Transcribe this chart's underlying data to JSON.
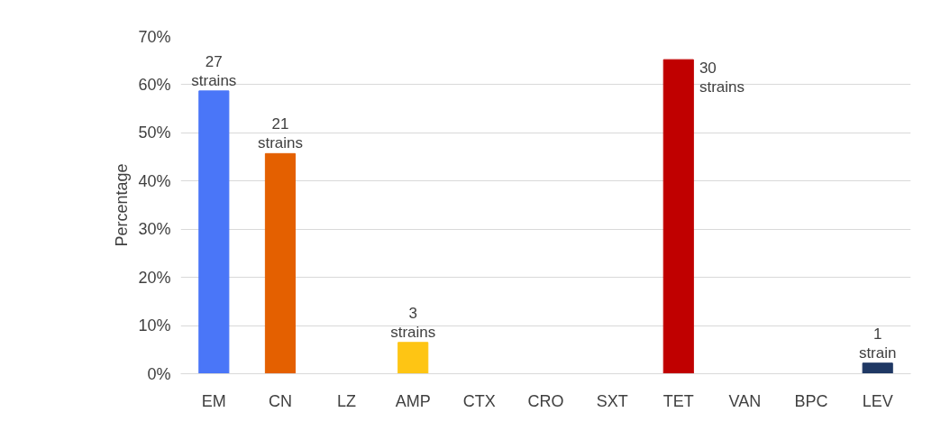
{
  "chart_data": {
    "type": "bar",
    "ylabel": "Percentage",
    "categories": [
      "EM",
      "CN",
      "LZ",
      "AMP",
      "CTX",
      "CRO",
      "SXT",
      "TET",
      "VAN",
      "BPC",
      "LEV"
    ],
    "values": [
      58.7,
      45.7,
      0,
      6.5,
      0,
      0,
      0,
      65.2,
      0,
      0,
      2.2
    ],
    "colors": [
      "#4a76f8",
      "#e46000",
      "#aaaaaa",
      "#fec514",
      "#aaaaaa",
      "#aaaaaa",
      "#aaaaaa",
      "#c00000",
      "#aaaaaa",
      "#aaaaaa",
      "#1f3864"
    ],
    "annotations": [
      {
        "text": "27\nstrains",
        "x": "EM",
        "y": 58.7
      },
      {
        "text": "21\nstrains",
        "x": "CN",
        "y": 45.7
      },
      {
        "text": "3\nstrains",
        "x": "AMP",
        "y": 6.5
      },
      {
        "text": "30\nstrains",
        "x": "TET",
        "y": 65.2
      },
      {
        "text": "1\nstrain",
        "x": "LEV",
        "y": 2.2
      }
    ],
    "ylim": [
      0,
      70
    ],
    "yticks": [
      {
        "value": 0,
        "label": "0%"
      },
      {
        "value": 10,
        "label": "10%"
      },
      {
        "value": 20,
        "label": "20%"
      },
      {
        "value": 30,
        "label": "30%"
      },
      {
        "value": 40,
        "label": "40%"
      },
      {
        "value": 50,
        "label": "50%"
      },
      {
        "value": 60,
        "label": "60%"
      },
      {
        "value": 70,
        "label": "70%"
      }
    ],
    "grid": "y"
  }
}
